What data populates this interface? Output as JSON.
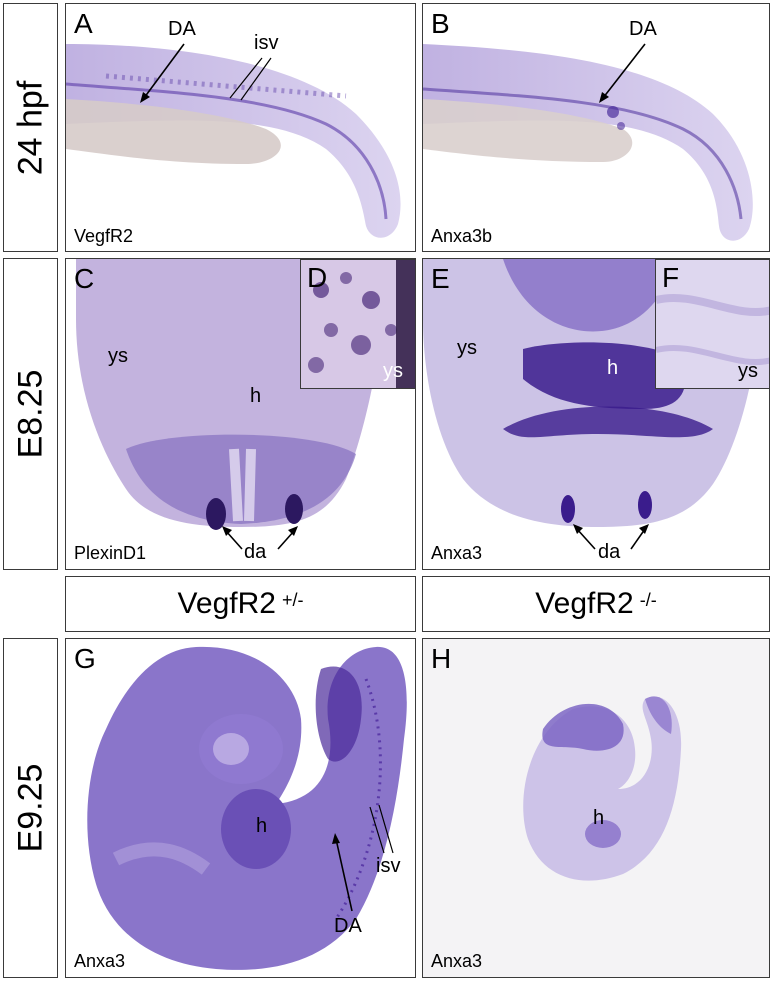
{
  "rows": [
    {
      "label": "24 hpf"
    },
    {
      "label": "E8.25"
    },
    {
      "label": "E9.25"
    }
  ],
  "columns": [
    {
      "label": "VegfR2",
      "sup": "+/-"
    },
    {
      "label": "VegfR2",
      "sup": "-/-"
    }
  ],
  "panels": {
    "A": {
      "letter": "A",
      "gene": "VegfR2",
      "labels": [
        "DA",
        "isv"
      ]
    },
    "B": {
      "letter": "B",
      "gene": "Anxa3b",
      "labels": [
        "DA"
      ]
    },
    "C": {
      "letter": "C",
      "gene": "PlexinD1",
      "labels": [
        "ys",
        "h",
        "da"
      ]
    },
    "D": {
      "letter": "D",
      "labels": [
        "ys"
      ]
    },
    "E": {
      "letter": "E",
      "gene": "Anxa3",
      "labels": [
        "ys",
        "h",
        "da"
      ]
    },
    "F": {
      "letter": "F",
      "labels": [
        "ys"
      ]
    },
    "G": {
      "letter": "G",
      "gene": "Anxa3",
      "labels": [
        "h",
        "isv",
        "DA"
      ]
    },
    "H": {
      "letter": "H",
      "gene": "Anxa3",
      "labels": [
        "h"
      ]
    }
  },
  "colors": {
    "stain": "#5a3aa8",
    "stain_light": "#c9bde6",
    "border": "#3a3a3a"
  }
}
